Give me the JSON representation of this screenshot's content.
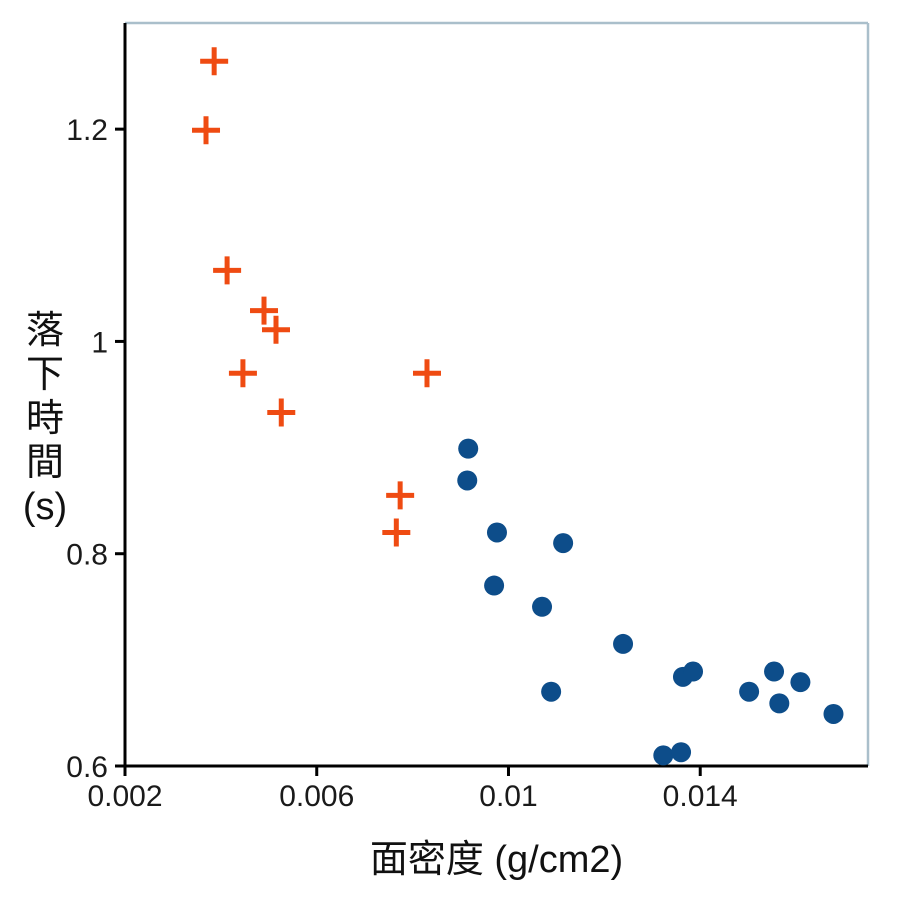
{
  "figure": {
    "background": "#ffffff"
  },
  "chart_data": {
    "type": "scatter",
    "title": "",
    "xlabel": "面密度 (g/cm2)",
    "ylabel": "落下時間(s)",
    "ylabel_stacked": [
      "落",
      "下",
      "時",
      "間",
      "(s)"
    ],
    "xlim": [
      0.002,
      0.0175
    ],
    "ylim": [
      0.6,
      1.3
    ],
    "grid": false,
    "legend": "none",
    "xticks": {
      "values": [
        0.002,
        0.006,
        0.01,
        0.014
      ],
      "labels": [
        "0.002",
        "0.006",
        "0.01",
        "0.014"
      ]
    },
    "yticks": {
      "values": [
        0.6,
        0.8,
        1.0,
        1.2
      ],
      "labels": [
        "0.6",
        "0.8",
        "1",
        "1.2"
      ]
    },
    "frame": {
      "axis_color": "#000000",
      "border_top_right_color": "#aabfcb"
    },
    "series": [
      {
        "name": "plus-marker-series",
        "marker": "plus",
        "color": "#ef4b12",
        "points": [
          [
            0.00386,
            1.264
          ],
          [
            0.00369,
            1.199
          ],
          [
            0.00413,
            1.067
          ],
          [
            0.0049,
            1.029
          ],
          [
            0.00515,
            1.011
          ],
          [
            0.00446,
            0.97
          ],
          [
            0.00526,
            0.933
          ],
          [
            0.0083,
            0.97
          ],
          [
            0.00774,
            0.855
          ],
          [
            0.00766,
            0.82
          ]
        ]
      },
      {
        "name": "circle-marker-series",
        "marker": "circle",
        "color": "#0d4d8a",
        "points": [
          [
            0.00916,
            0.899
          ],
          [
            0.00914,
            0.869
          ],
          [
            0.00976,
            0.82
          ],
          [
            0.01114,
            0.81
          ],
          [
            0.0097,
            0.77
          ],
          [
            0.0107,
            0.75
          ],
          [
            0.01239,
            0.715
          ],
          [
            0.01364,
            0.684
          ],
          [
            0.01385,
            0.689
          ],
          [
            0.01089,
            0.67
          ],
          [
            0.01502,
            0.67
          ],
          [
            0.01554,
            0.689
          ],
          [
            0.01565,
            0.659
          ],
          [
            0.01609,
            0.679
          ],
          [
            0.01678,
            0.649
          ],
          [
            0.01323,
            0.61
          ],
          [
            0.0136,
            0.613
          ]
        ]
      }
    ]
  }
}
